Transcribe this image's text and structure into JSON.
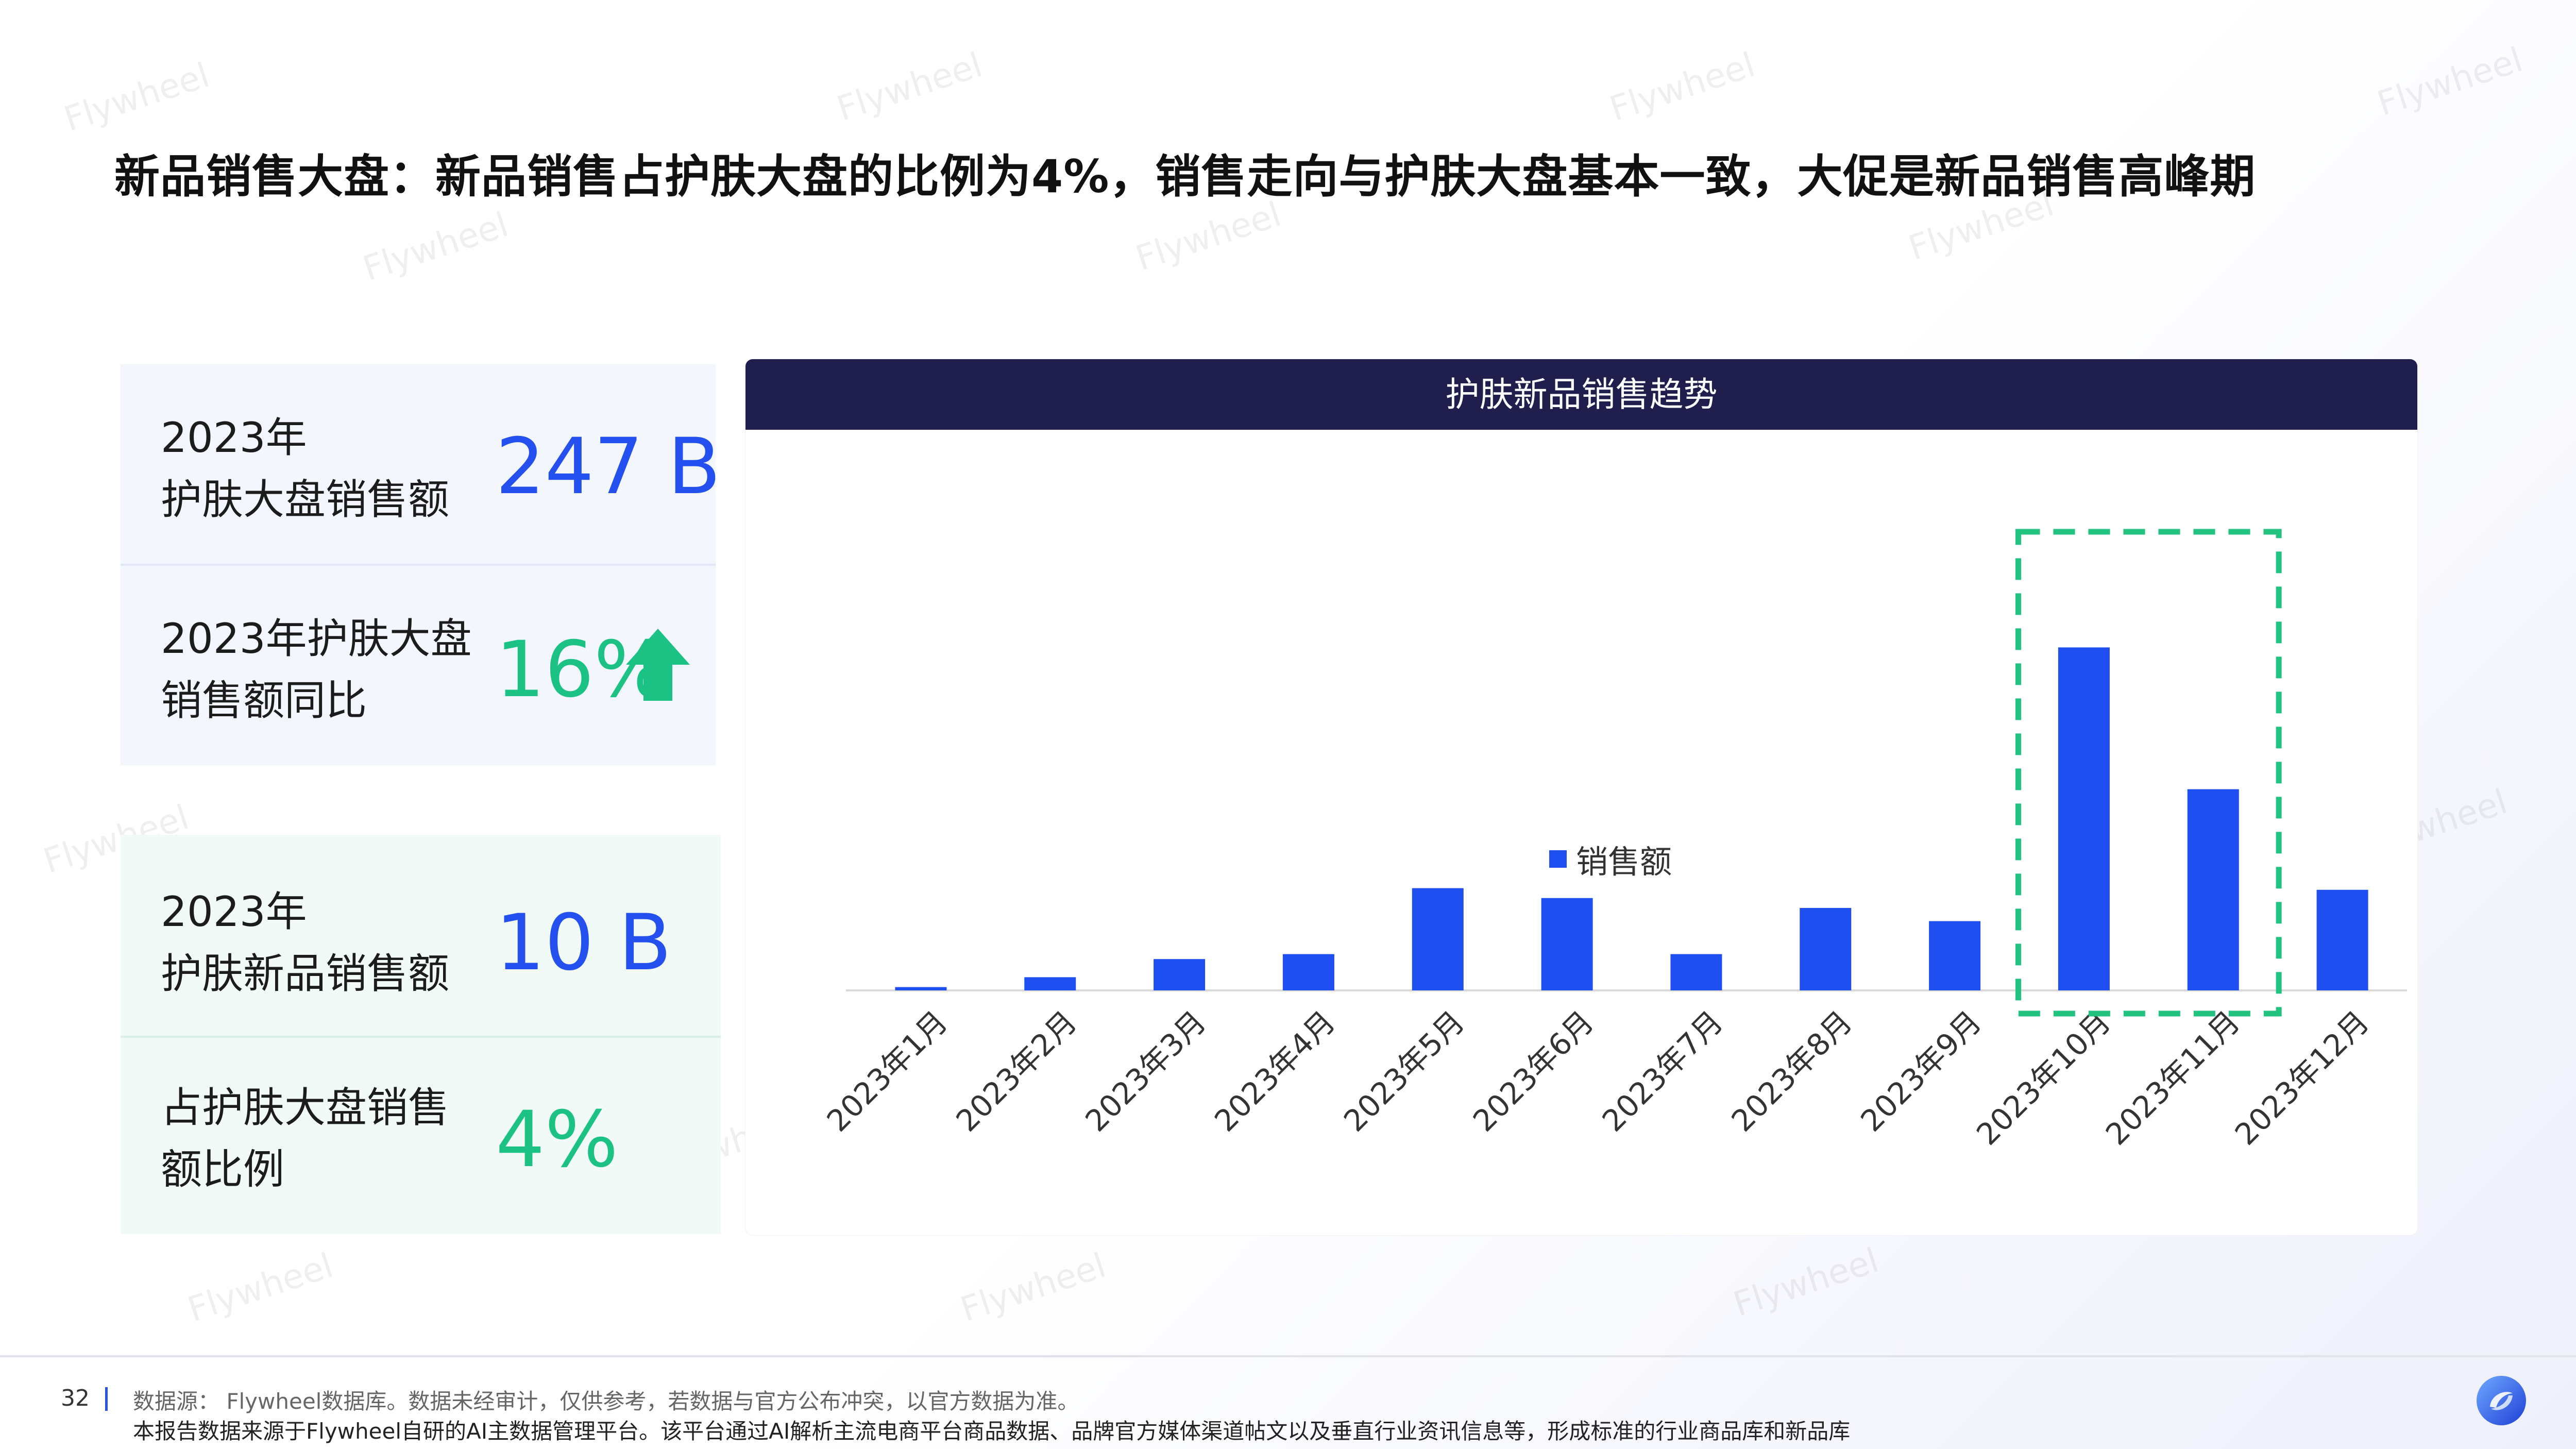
{
  "title": "新品销售大盘：新品销售占护肤大盘的比例为4%，销售走向与护肤大盘基本一致，大促是新品销售高峰期",
  "kpi_blue": {
    "item1": {
      "label_line1": "2023年",
      "label_line2": "护肤大盘销售额",
      "value": "247 B"
    },
    "item2": {
      "label_line1": "2023年护肤大盘",
      "label_line2": "销售额同比",
      "value": "16%",
      "trend_icon": "arrow-up-icon"
    }
  },
  "kpi_green": {
    "item1": {
      "label_line1": "2023年",
      "label_line2": "护肤新品销售额",
      "value": "10 B"
    },
    "item2": {
      "label_line1": "占护肤大盘销售",
      "label_line2": "额比例",
      "value": "4%"
    }
  },
  "chart_panel": {
    "header": "护肤新品销售趋势"
  },
  "chart_data": {
    "type": "bar",
    "categories": [
      "2023年1月",
      "2023年2月",
      "2023年3月",
      "2023年4月",
      "2023年5月",
      "2023年6月",
      "2023年7月",
      "2023年8月",
      "2023年9月",
      "2023年10月",
      "2023年11月",
      "2023年12月"
    ],
    "series": [
      {
        "name": "销售额",
        "values": [
          0.1,
          0.4,
          0.95,
          1.1,
          3.1,
          2.8,
          1.1,
          2.5,
          2.1,
          10.4,
          6.1,
          3.05
        ]
      }
    ],
    "legend": "top-center",
    "grid": false,
    "highlight": {
      "categories": [
        "2023年10月",
        "2023年11月"
      ],
      "style": "dashed-box"
    },
    "colors": {
      "bar": "#1f4ff0",
      "highlight": "#22c27f"
    }
  },
  "footer": {
    "page_number": "32",
    "source_note": "数据源： Flywheel数据库。数据未经审计，仅供参考，若数据与官方公布冲突，以官方数据为准。",
    "platform_note": "本报告数据来源于Flywheel自研的AI主数据管理平台。该平台通过AI解析主流电商平台商品数据、品牌官方媒体渠道帖文以及垂直行业资讯信息等，形成标准的行业商品库和新品库"
  },
  "watermark_text": "Flywheel",
  "colors": {
    "accent_blue": "#2450f0",
    "accent_green": "#1cc283",
    "header_navy": "#1f1e4c"
  }
}
